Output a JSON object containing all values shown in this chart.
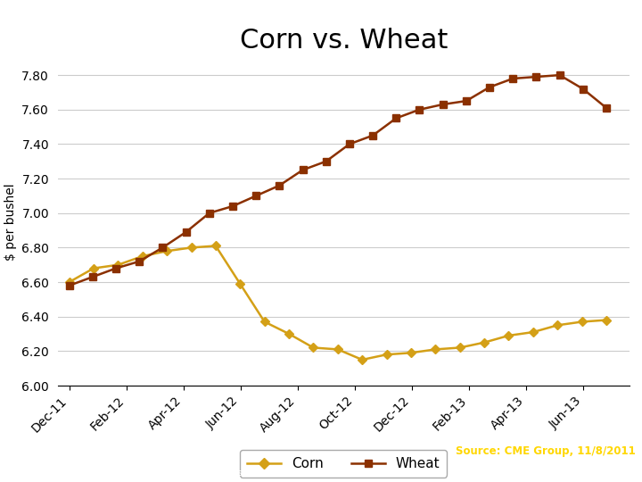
{
  "title": "Corn vs. Wheat",
  "ylabel": "$ per bushel",
  "ylim": [
    6.0,
    7.9
  ],
  "yticks": [
    6.0,
    6.2,
    6.4,
    6.6,
    6.8,
    7.0,
    7.2,
    7.4,
    7.6,
    7.8
  ],
  "x_labels": [
    "Dec-11",
    "Feb-12",
    "Apr-12",
    "Jun-12",
    "Aug-12",
    "Oct-12",
    "Dec-12",
    "Feb-13",
    "Apr-13",
    "Jun-13"
  ],
  "corn_color": "#D4A017",
  "wheat_color": "#8B3000",
  "corn_values": [
    6.6,
    6.68,
    6.7,
    6.75,
    6.78,
    6.8,
    6.81,
    6.59,
    6.37,
    6.3,
    6.22,
    6.21,
    6.15,
    6.18,
    6.19,
    6.21,
    6.22,
    6.25,
    6.29,
    6.31,
    6.35,
    6.37,
    6.38
  ],
  "wheat_values": [
    6.58,
    6.63,
    6.68,
    6.72,
    6.8,
    6.89,
    7.0,
    7.04,
    7.1,
    7.16,
    7.25,
    7.3,
    7.4,
    7.45,
    7.55,
    7.6,
    7.63,
    7.65,
    7.73,
    7.78,
    7.79,
    7.8,
    7.72,
    7.61
  ],
  "title_fontsize": 22,
  "label_fontsize": 10,
  "tick_fontsize": 10,
  "legend_fontsize": 11,
  "background_color": "#ffffff",
  "footer_bg_color": "#991111",
  "grid_color": "#cccccc"
}
